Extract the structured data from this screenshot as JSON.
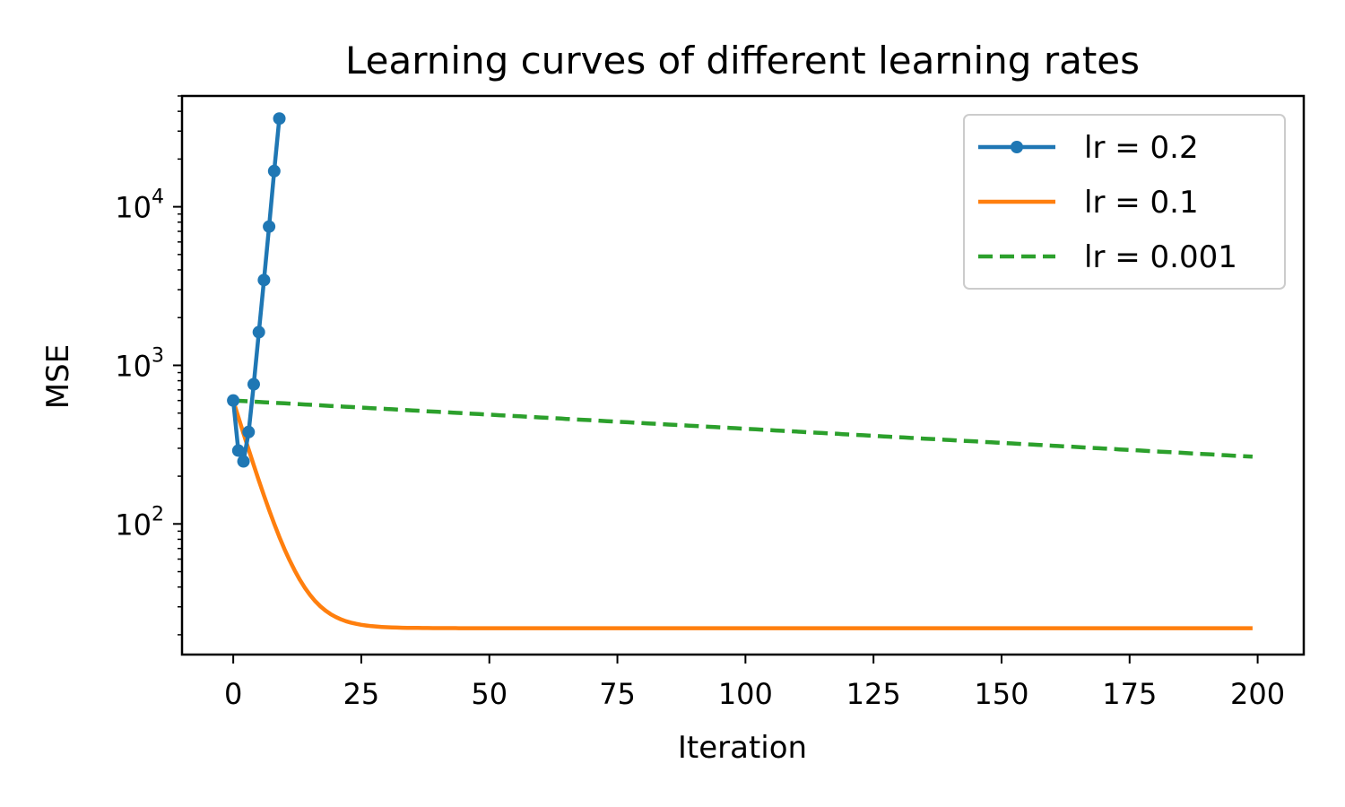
{
  "chart_data": {
    "type": "line",
    "title": "Learning curves of different learning rates",
    "xlabel": "Iteration",
    "ylabel": "MSE",
    "xlim": [
      -10,
      209
    ],
    "ylim": [
      15,
      50000
    ],
    "yscale": "log",
    "grid": false,
    "legend_position": "top-right",
    "x_ticks": [
      0,
      25,
      50,
      75,
      100,
      125,
      150,
      175,
      200
    ],
    "x_tick_labels": [
      "0",
      "25",
      "50",
      "75",
      "100",
      "125",
      "150",
      "175",
      "200"
    ],
    "y_ticks": [
      {
        "value": 100,
        "base": "10",
        "exp": "2"
      },
      {
        "value": 1000,
        "base": "10",
        "exp": "3"
      },
      {
        "value": 10000,
        "base": "10",
        "exp": "4"
      }
    ],
    "series": [
      {
        "name": "lr = 0.2",
        "color": "#1f77b4",
        "style": "solid-marker",
        "x": [
          0,
          1,
          2,
          3,
          4,
          5,
          6,
          7,
          8,
          9
        ],
        "y": [
          600,
          290,
          248,
          380,
          760,
          1620,
          3450,
          7500,
          16800,
          36000
        ]
      },
      {
        "name": "lr = 0.1",
        "color": "#ff7f0e",
        "style": "solid",
        "curve": {
          "type": "exp_decay",
          "start": 600,
          "floor": 22,
          "rate": 0.25,
          "x_start": 0,
          "x_end": 199
        }
      },
      {
        "name": "lr = 0.001",
        "color": "#2ca02c",
        "style": "dashed",
        "curve": {
          "type": "exp_decay",
          "start": 600,
          "floor": 0,
          "rate": 0.0041,
          "x_start": 0,
          "x_end": 199
        }
      }
    ]
  }
}
